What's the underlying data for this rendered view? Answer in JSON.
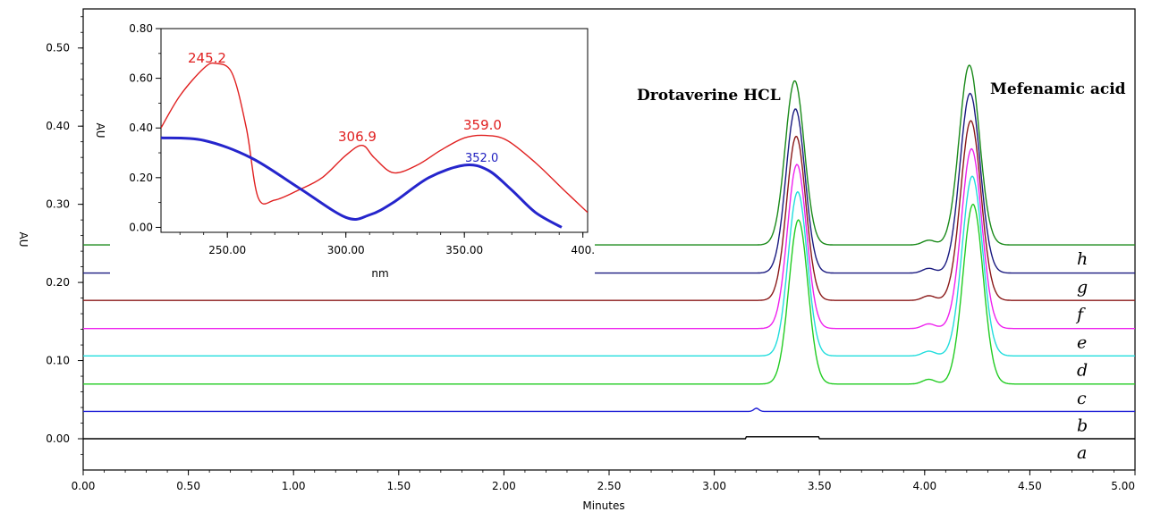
{
  "chart_data": [
    {
      "type": "line",
      "title": "",
      "xlabel": "Minutes",
      "ylabel": "AU",
      "xlim": [
        0,
        5
      ],
      "ylim": [
        -0.04,
        0.55
      ],
      "x_ticks": [
        "0.00",
        "0.50",
        "1.00",
        "1.50",
        "2.00",
        "2.50",
        "3.00",
        "3.50",
        "4.00",
        "4.50",
        "5.00"
      ],
      "y_ticks": [
        "0.00",
        "0.10",
        "0.20",
        "0.30",
        "0.40",
        "0.50"
      ],
      "grid": false,
      "peak_labels": [
        "Drotaverine HCL",
        "Mefenamic acid"
      ],
      "peak_retention_minutes": [
        3.4,
        4.23
      ],
      "series": [
        {
          "name": "a",
          "color": "#000000",
          "baseline": 0.0,
          "peak1": 0.0,
          "peak2": 0.0
        },
        {
          "name": "b",
          "color": "#1f1fd6",
          "baseline": 0.035,
          "peak1": 0.0,
          "peak2": 0.0
        },
        {
          "name": "c",
          "color": "#22cc22",
          "baseline": 0.07,
          "peak1": 0.21,
          "peak2": 0.23
        },
        {
          "name": "d",
          "color": "#22dddd",
          "baseline": 0.106,
          "peak1": 0.21,
          "peak2": 0.23
        },
        {
          "name": "e",
          "color": "#ee22ee",
          "baseline": 0.141,
          "peak1": 0.21,
          "peak2": 0.23
        },
        {
          "name": "f",
          "color": "#8b1a1a",
          "baseline": 0.177,
          "peak1": 0.21,
          "peak2": 0.23
        },
        {
          "name": "g",
          "color": "#1a1a80",
          "baseline": 0.212,
          "peak1": 0.21,
          "peak2": 0.23
        },
        {
          "name": "h",
          "color": "#1a8a1a",
          "baseline": 0.248,
          "peak1": 0.21,
          "peak2": 0.23
        }
      ]
    },
    {
      "type": "line",
      "title": "",
      "xlabel": "nm",
      "ylabel": "AU",
      "xlim": [
        222,
        402
      ],
      "ylim": [
        -0.02,
        0.8
      ],
      "x_ticks": [
        "250.00",
        "300.00",
        "350.00",
        "400."
      ],
      "y_ticks": [
        "0.00",
        "0.20",
        "0.40",
        "0.60",
        "0.80"
      ],
      "annotations": [
        {
          "text": "245.2",
          "color": "#e02020"
        },
        {
          "text": "306.9",
          "color": "#e02020"
        },
        {
          "text": "359.0",
          "color": "#e02020"
        },
        {
          "text": "352.0",
          "color": "#2020c0"
        }
      ],
      "series": [
        {
          "color": "#e02020",
          "x": [
            222,
            230,
            240,
            245,
            252,
            258,
            263,
            270,
            280,
            290,
            300,
            306.9,
            312,
            320,
            330,
            340,
            350,
            359,
            368,
            380,
            392,
            402
          ],
          "y": [
            0.4,
            0.53,
            0.64,
            0.66,
            0.62,
            0.4,
            0.12,
            0.11,
            0.15,
            0.2,
            0.29,
            0.33,
            0.28,
            0.22,
            0.25,
            0.31,
            0.36,
            0.37,
            0.35,
            0.26,
            0.15,
            0.06
          ]
        },
        {
          "color": "#2525cc",
          "x": [
            222,
            240,
            260,
            280,
            300,
            310,
            320,
            335,
            350,
            360,
            370,
            380,
            391
          ],
          "y": [
            0.36,
            0.35,
            0.28,
            0.16,
            0.04,
            0.05,
            0.1,
            0.2,
            0.25,
            0.23,
            0.15,
            0.06,
            0.0
          ]
        }
      ]
    }
  ]
}
